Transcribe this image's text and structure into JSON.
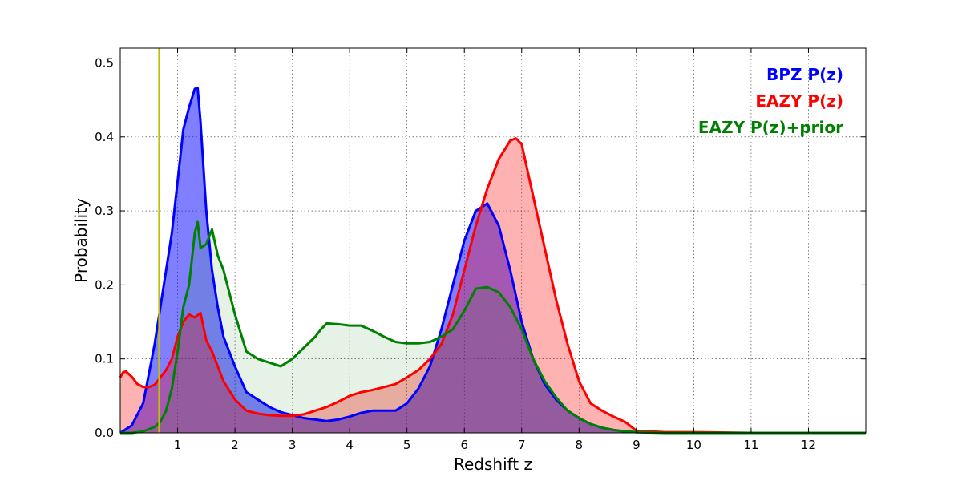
{
  "chart_data": {
    "type": "area",
    "title": "",
    "xlabel": "Redshift z",
    "ylabel": "Probability",
    "xlim": [
      0,
      13
    ],
    "ylim": [
      0,
      0.52
    ],
    "xticks": [
      1,
      2,
      3,
      4,
      5,
      6,
      7,
      8,
      9,
      10,
      11,
      12
    ],
    "xtick_labels": [
      "1",
      "2",
      "3",
      "4",
      "5",
      "6",
      "7",
      "8",
      "9",
      "10",
      "11",
      "12"
    ],
    "yticks": [
      0.0,
      0.1,
      0.2,
      0.3,
      0.4,
      0.5
    ],
    "ytick_labels": [
      "0.0",
      "0.1",
      "0.2",
      "0.3",
      "0.4",
      "0.5"
    ],
    "grid": true,
    "legend_position": "top-right",
    "reference_line": {
      "x": 0.68,
      "color": "#bfbf00"
    },
    "series": [
      {
        "name": "BPZ P(z)",
        "color": "#0000ff",
        "fill": "#0000ff",
        "fill_opacity": 0.5,
        "x": [
          0.0,
          0.2,
          0.4,
          0.6,
          0.8,
          0.9,
          1.0,
          1.1,
          1.2,
          1.3,
          1.35,
          1.4,
          1.5,
          1.6,
          1.7,
          1.8,
          2.0,
          2.2,
          2.4,
          2.6,
          2.8,
          3.0,
          3.2,
          3.4,
          3.6,
          3.8,
          4.0,
          4.2,
          4.4,
          4.6,
          4.8,
          5.0,
          5.2,
          5.4,
          5.6,
          5.8,
          6.0,
          6.2,
          6.4,
          6.6,
          6.8,
          7.0,
          7.2,
          7.4,
          7.6,
          7.8,
          8.0,
          8.2,
          8.4,
          8.6,
          8.8,
          9.0,
          10.0,
          11.0,
          12.0,
          13.0
        ],
        "y": [
          0.0,
          0.01,
          0.04,
          0.12,
          0.22,
          0.27,
          0.34,
          0.41,
          0.44,
          0.465,
          0.466,
          0.42,
          0.3,
          0.22,
          0.17,
          0.13,
          0.09,
          0.055,
          0.045,
          0.035,
          0.028,
          0.024,
          0.02,
          0.018,
          0.016,
          0.018,
          0.022,
          0.027,
          0.03,
          0.03,
          0.03,
          0.04,
          0.06,
          0.09,
          0.14,
          0.2,
          0.26,
          0.3,
          0.31,
          0.28,
          0.22,
          0.15,
          0.1,
          0.066,
          0.045,
          0.03,
          0.02,
          0.012,
          0.007,
          0.004,
          0.002,
          0.001,
          0.0,
          0.0,
          0.0,
          0.0
        ]
      },
      {
        "name": "EAZY P(z)",
        "color": "#ff0000",
        "fill": "#ff0000",
        "fill_opacity": 0.3,
        "x": [
          0.0,
          0.05,
          0.1,
          0.2,
          0.3,
          0.4,
          0.5,
          0.6,
          0.7,
          0.8,
          0.9,
          1.0,
          1.1,
          1.2,
          1.3,
          1.4,
          1.5,
          1.6,
          1.7,
          1.8,
          2.0,
          2.2,
          2.4,
          2.6,
          2.8,
          3.0,
          3.2,
          3.4,
          3.6,
          3.8,
          4.0,
          4.2,
          4.4,
          4.6,
          4.8,
          5.0,
          5.2,
          5.4,
          5.6,
          5.8,
          6.0,
          6.2,
          6.4,
          6.6,
          6.8,
          6.9,
          7.0,
          7.2,
          7.4,
          7.6,
          7.8,
          8.0,
          8.2,
          8.4,
          8.6,
          8.8,
          9.0,
          9.5,
          10.0,
          11.0,
          12.0,
          13.0
        ],
        "y": [
          0.075,
          0.082,
          0.083,
          0.076,
          0.066,
          0.062,
          0.062,
          0.065,
          0.075,
          0.085,
          0.1,
          0.13,
          0.15,
          0.16,
          0.156,
          0.162,
          0.125,
          0.11,
          0.09,
          0.07,
          0.045,
          0.03,
          0.026,
          0.024,
          0.023,
          0.023,
          0.025,
          0.03,
          0.035,
          0.042,
          0.05,
          0.055,
          0.058,
          0.062,
          0.066,
          0.075,
          0.085,
          0.1,
          0.12,
          0.16,
          0.22,
          0.28,
          0.33,
          0.37,
          0.395,
          0.398,
          0.39,
          0.32,
          0.25,
          0.18,
          0.12,
          0.07,
          0.04,
          0.03,
          0.022,
          0.015,
          0.003,
          0.001,
          0.001,
          0.0,
          0.0,
          0.0
        ]
      },
      {
        "name": "EAZY P(z)+prior",
        "color": "#008000",
        "fill": "#008000",
        "fill_opacity": 0.1,
        "x": [
          0.0,
          0.2,
          0.4,
          0.6,
          0.7,
          0.8,
          0.9,
          1.0,
          1.1,
          1.2,
          1.3,
          1.35,
          1.4,
          1.5,
          1.6,
          1.7,
          1.8,
          2.0,
          2.2,
          2.4,
          2.6,
          2.8,
          3.0,
          3.2,
          3.4,
          3.5,
          3.6,
          3.8,
          4.0,
          4.2,
          4.4,
          4.6,
          4.8,
          5.0,
          5.2,
          5.4,
          5.6,
          5.8,
          6.0,
          6.2,
          6.4,
          6.6,
          6.8,
          7.0,
          7.2,
          7.4,
          7.6,
          7.8,
          8.0,
          8.2,
          8.4,
          8.6,
          8.8,
          9.0,
          9.5,
          10.0,
          11.0,
          12.0,
          13.0
        ],
        "y": [
          0.0,
          0.0,
          0.002,
          0.008,
          0.015,
          0.03,
          0.06,
          0.11,
          0.17,
          0.2,
          0.27,
          0.285,
          0.25,
          0.255,
          0.275,
          0.24,
          0.22,
          0.16,
          0.11,
          0.1,
          0.095,
          0.09,
          0.1,
          0.115,
          0.13,
          0.14,
          0.148,
          0.147,
          0.145,
          0.145,
          0.138,
          0.13,
          0.123,
          0.121,
          0.121,
          0.123,
          0.13,
          0.14,
          0.165,
          0.195,
          0.197,
          0.19,
          0.17,
          0.14,
          0.1,
          0.07,
          0.048,
          0.03,
          0.02,
          0.012,
          0.007,
          0.004,
          0.002,
          0.001,
          0.0,
          0.0,
          0.0,
          0.0,
          0.0
        ]
      }
    ]
  }
}
